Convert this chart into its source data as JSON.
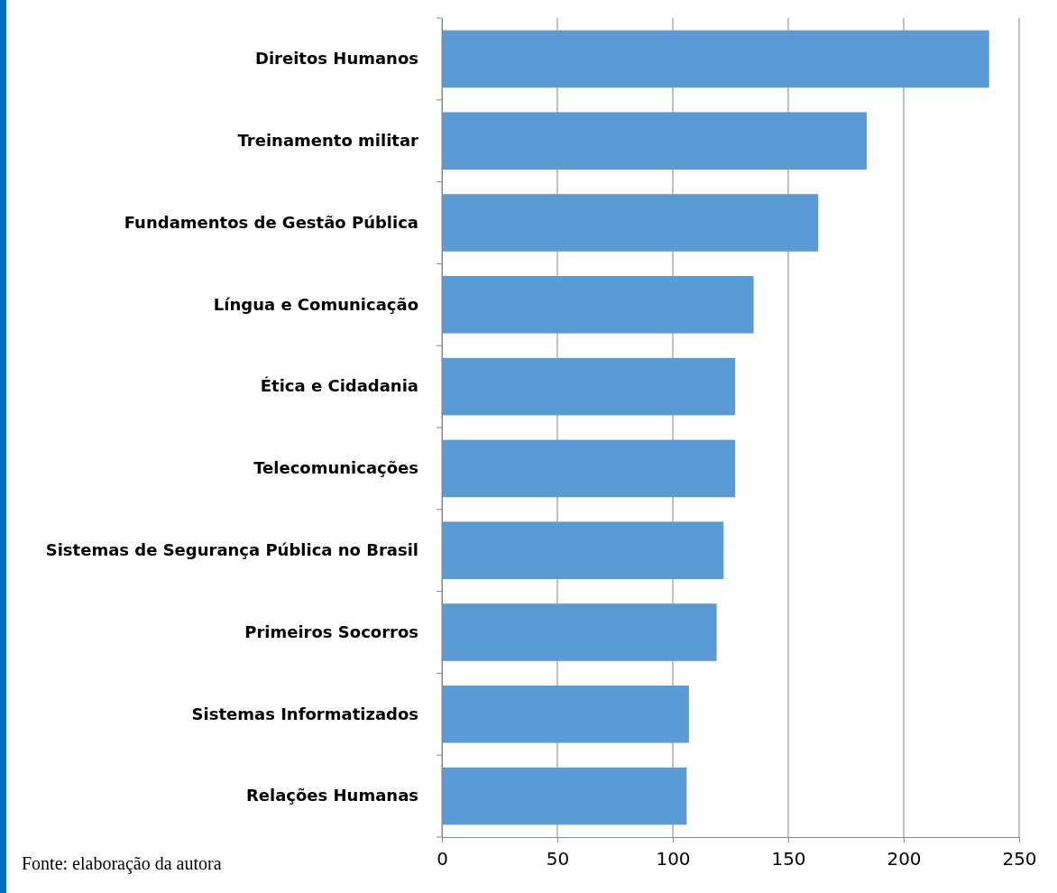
{
  "chart_data": {
    "type": "bar",
    "orientation": "horizontal",
    "categories": [
      "Direitos Humanos",
      "Treinamento militar",
      "Fundamentos de Gestão Pública",
      "Língua e Comunicação",
      "Ética e Cidadania",
      "Telecomunicações",
      "Sistemas de Segurança Pública no Brasil",
      "Primeiros Socorros",
      "Sistemas Informatizados",
      "Relações Humanas"
    ],
    "values": [
      237,
      184,
      163,
      135,
      127,
      127,
      122,
      119,
      107,
      106
    ],
    "color": "#5b9bd5",
    "xlim": [
      0,
      250
    ],
    "xticks": [
      0,
      50,
      100,
      150,
      200,
      250
    ],
    "grid": "x",
    "annotations": [
      "Fonte: elaboração da autora"
    ]
  }
}
